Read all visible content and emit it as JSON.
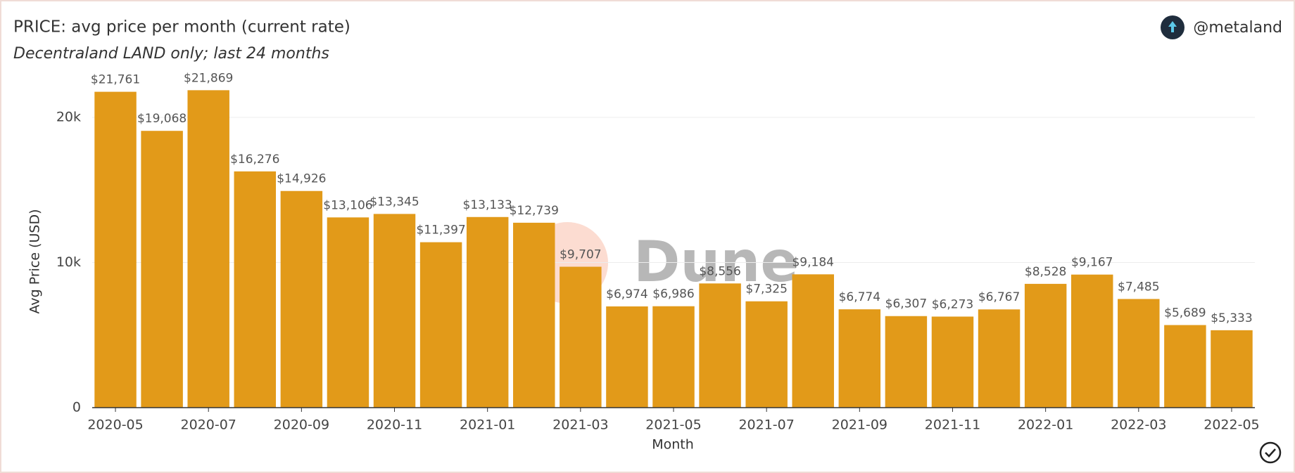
{
  "chart_data": {
    "type": "bar",
    "title": "PRICE: avg price per month (current rate)",
    "subtitle": "Decentraland LAND only; last 24 months",
    "author": "@metaland",
    "watermark": "Dune",
    "x_label": "Month",
    "y_label": "Avg Price (USD)",
    "categories": [
      "2020-05",
      null,
      "2020-07",
      null,
      "2020-09",
      null,
      "2020-11",
      null,
      "2021-01",
      null,
      "2021-03",
      null,
      "2021-05",
      null,
      "2021-07",
      null,
      "2021-09",
      null,
      "2021-11",
      null,
      "2022-01",
      null,
      "2022-03",
      null,
      "2022-05"
    ],
    "values": [
      21761,
      19068,
      21869,
      16276,
      14926,
      13106,
      13345,
      11397,
      13133,
      12739,
      9707,
      6974,
      6986,
      8556,
      7325,
      9184,
      6774,
      6307,
      6273,
      6767,
      8528,
      9167,
      7485,
      5689,
      5333
    ],
    "value_labels": [
      "$21,761",
      "$19,068",
      "$21,869",
      "$16,276",
      "$14,926",
      "$13,106",
      "$13,345",
      "$11,397",
      "$13,133",
      "$12,739",
      "$9,707",
      "$6,974",
      "$6,986",
      "$8,556",
      "$7,325",
      "$9,184",
      "$6,774",
      "$6,307",
      "$6,273",
      "$6,767",
      "$8,528",
      "$9,167",
      "$7,485",
      "$5,689",
      "$5,333"
    ],
    "color": "#e29a19",
    "ylim": [
      0,
      23000
    ],
    "yticks": [
      0,
      {
        "value": 10000,
        "label": "10k"
      },
      {
        "value": 20000,
        "label": "20k"
      }
    ],
    "grid": true
  }
}
